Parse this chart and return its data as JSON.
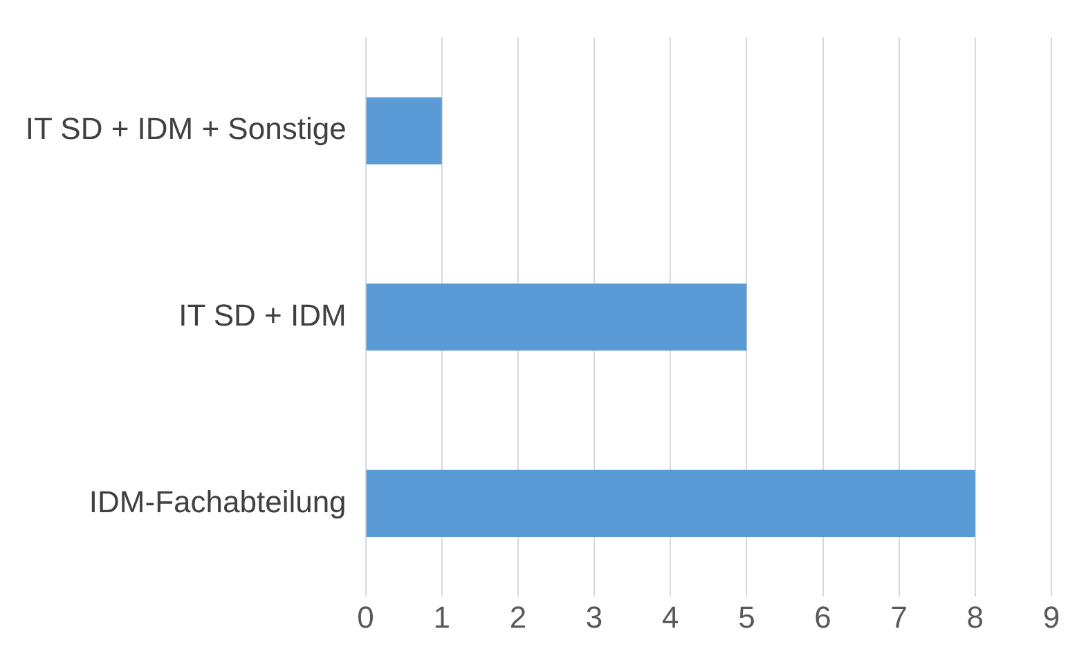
{
  "chart_data": {
    "type": "bar",
    "orientation": "horizontal",
    "categories": [
      "IT SD + IDM + Sonstige",
      "IT SD + IDM",
      "IDM-Fachabteilung"
    ],
    "values": [
      1,
      5,
      8
    ],
    "color": "#5b9bd5",
    "xlim": [
      0,
      9
    ],
    "xticks": [
      0,
      1,
      2,
      3,
      4,
      5,
      6,
      7,
      8,
      9
    ],
    "grid": "x",
    "legend": false
  }
}
